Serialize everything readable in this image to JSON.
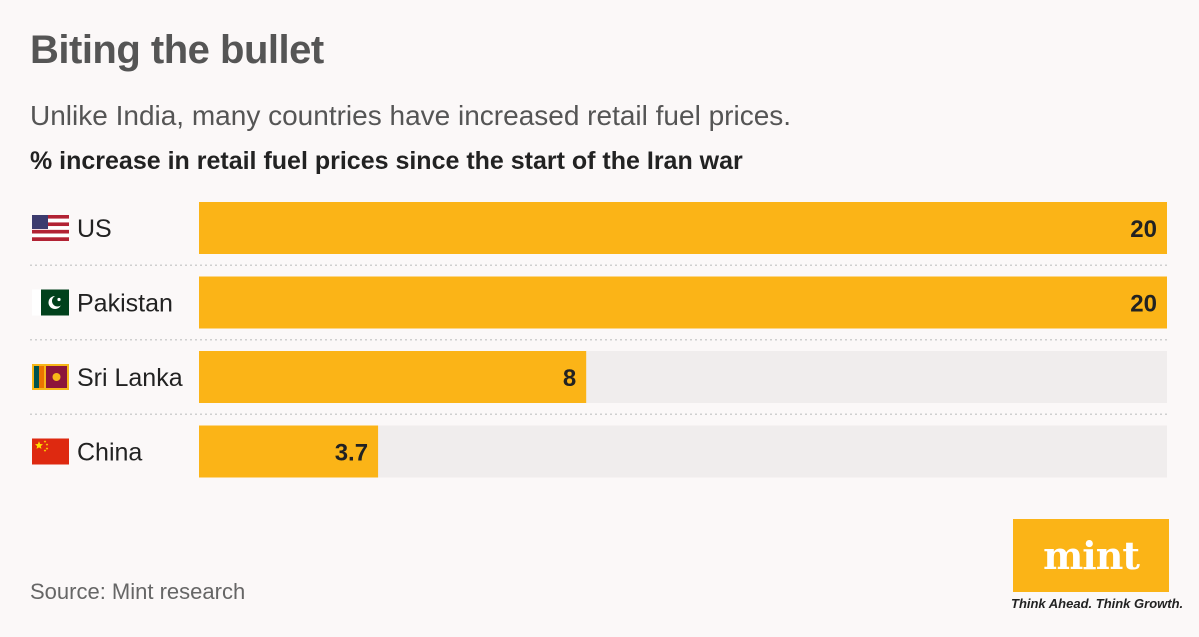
{
  "header": {
    "title": "Biting the bullet",
    "subtitle": "Unlike India, many countries have increased retail fuel prices.",
    "axis_title": "% increase in retail fuel prices since the start of the Iran war"
  },
  "chart_data": {
    "type": "bar",
    "orientation": "horizontal",
    "title": "Biting the bullet",
    "subtitle": "Unlike India, many countries have increased retail fuel prices.",
    "xlabel": "% increase in retail fuel prices since the start of the Iran war",
    "ylabel": "",
    "categories": [
      "US",
      "Pakistan",
      "Sri Lanka",
      "China"
    ],
    "values": [
      20,
      20,
      8,
      3.7
    ],
    "value_labels": [
      "20",
      "20",
      "8",
      "3.7"
    ],
    "flags": [
      "us-flag-icon",
      "pakistan-flag-icon",
      "sri-lanka-flag-icon",
      "china-flag-icon"
    ],
    "xlim": [
      0,
      20
    ],
    "grid": false,
    "colors": {
      "bar": "#fbb417",
      "track": "#f0eded",
      "divider": "#cfcfcf"
    }
  },
  "footer": {
    "source": "Source: Mint research",
    "logo_text": "mint",
    "tagline": "Think Ahead. Think Growth.",
    "logo_color": "#fbb417"
  }
}
